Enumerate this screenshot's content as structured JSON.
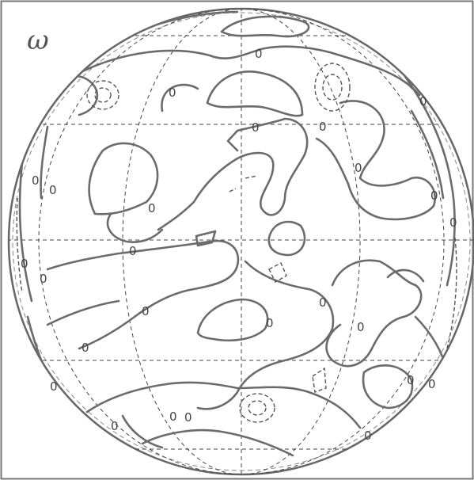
{
  "panel_label": "ω",
  "contour_label": "0",
  "colors": {
    "background": "#ffffff",
    "frame": "#777777",
    "positive_contour": "#6b6b6b",
    "negative_contour": "#555555",
    "grid": "#444444"
  },
  "line_styles": {
    "positive": "solid",
    "negative": "dashed",
    "grid": "dashed"
  }
}
